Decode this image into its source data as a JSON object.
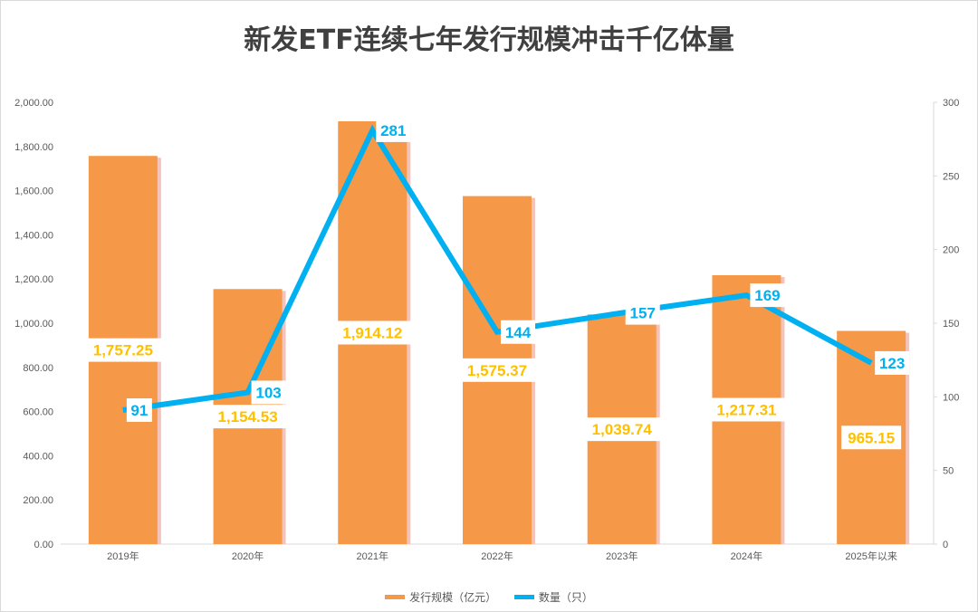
{
  "chart_data": {
    "type": "bar+line",
    "title": "新发ETF连续七年发行规模冲击千亿体量",
    "categories": [
      "2019年",
      "2020年",
      "2021年",
      "2022年",
      "2023年",
      "2024年",
      "2025年以来"
    ],
    "series": [
      {
        "name": "发行规模（亿元）",
        "type": "bar",
        "axis": "left",
        "color": "#F59847",
        "values": [
          1757.25,
          1154.53,
          1914.12,
          1575.37,
          1039.74,
          1217.31,
          965.15
        ],
        "labels": [
          "1,757.25",
          "1,154.53",
          "1,914.12",
          "1,575.37",
          "1,039.74",
          "1,217.31",
          "965.15"
        ]
      },
      {
        "name": "数量（只）",
        "type": "line",
        "axis": "right",
        "color": "#00B0F0",
        "values": [
          91,
          103,
          281,
          144,
          157,
          169,
          123
        ],
        "labels": [
          "91",
          "103",
          "281",
          "144",
          "157",
          "169",
          "123"
        ]
      }
    ],
    "left_axis": {
      "ylim": [
        0,
        2000
      ],
      "ticks": [
        "0.00",
        "200.00",
        "400.00",
        "600.00",
        "800.00",
        "1,000.00",
        "1,200.00",
        "1,400.00",
        "1,600.00",
        "1,800.00",
        "2,000.00"
      ]
    },
    "right_axis": {
      "ylim": [
        0,
        300
      ],
      "ticks": [
        "0",
        "50",
        "100",
        "150",
        "200",
        "250",
        "300"
      ]
    },
    "legend": "bottom"
  }
}
